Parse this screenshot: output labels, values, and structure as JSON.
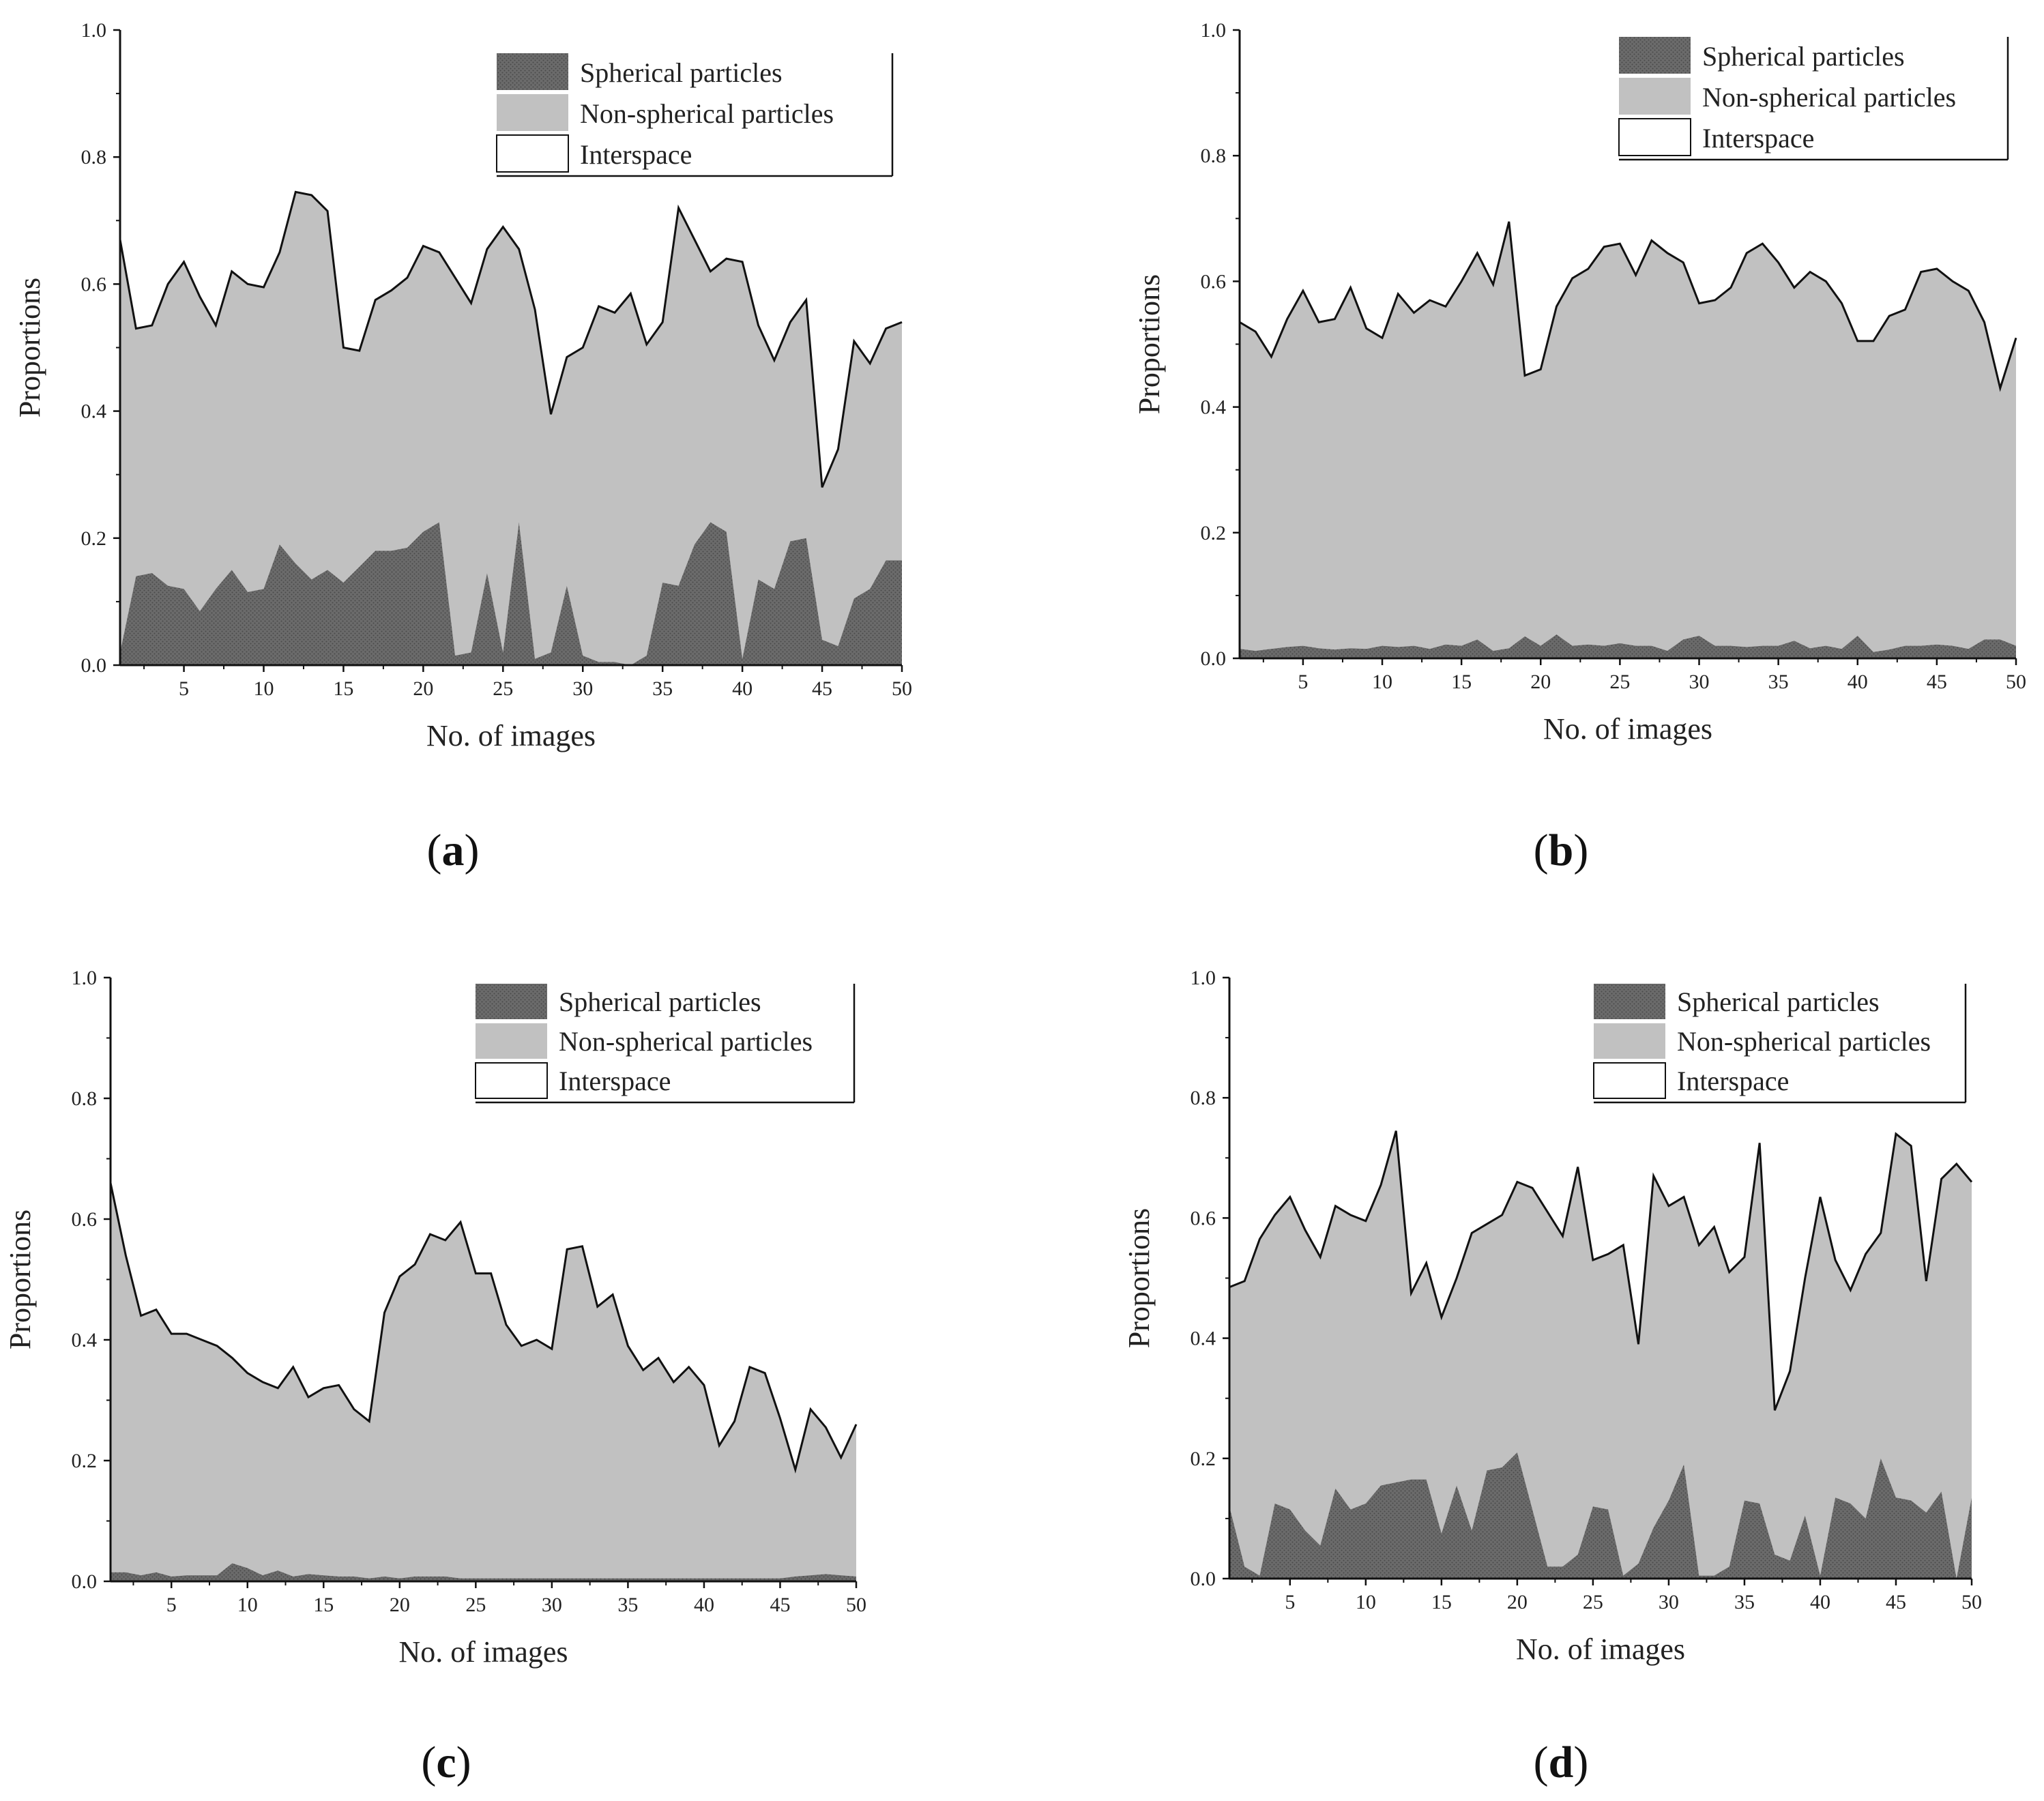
{
  "colors": {
    "spherical": "#6b6b6b",
    "non_spherical": "#c1c1c1",
    "interspace": "#ffffff",
    "axis": "#111111",
    "dot_pattern": "#4a4a4a"
  },
  "chart_data": [
    {
      "panel": "a",
      "type": "area",
      "stacked": true,
      "xlabel": "No. of images",
      "ylabel": "Proportions",
      "xlim": [
        1,
        50
      ],
      "ylim": [
        0,
        1
      ],
      "xticks": [
        5,
        10,
        15,
        20,
        25,
        30,
        35,
        40,
        45,
        50
      ],
      "yticks": [
        "0.0",
        "0.2",
        "0.4",
        "0.6",
        "0.8",
        "1.0"
      ],
      "legend_position": "top-right",
      "legend": [
        "Spherical particles",
        "Non-spherical particles",
        "Interspace"
      ],
      "x": [
        1,
        2,
        3,
        4,
        5,
        6,
        7,
        8,
        9,
        10,
        11,
        12,
        13,
        14,
        15,
        16,
        17,
        18,
        19,
        20,
        21,
        22,
        23,
        24,
        25,
        26,
        27,
        28,
        29,
        30,
        31,
        32,
        33,
        34,
        35,
        36,
        37,
        38,
        39,
        40,
        41,
        42,
        43,
        44,
        45,
        46,
        47,
        48,
        49,
        50
      ],
      "series": [
        {
          "name": "Spherical particles",
          "values": [
            0.02,
            0.14,
            0.145,
            0.125,
            0.12,
            0.085,
            0.12,
            0.15,
            0.115,
            0.12,
            0.19,
            0.16,
            0.135,
            0.15,
            0.13,
            0.155,
            0.18,
            0.18,
            0.185,
            0.21,
            0.225,
            0.015,
            0.02,
            0.145,
            0.02,
            0.225,
            0.01,
            0.02,
            0.125,
            0.015,
            0.005,
            0.005,
            0.0,
            0.015,
            0.13,
            0.125,
            0.19,
            0.225,
            0.21,
            0.01,
            0.135,
            0.12,
            0.195,
            0.2,
            0.04,
            0.03,
            0.105,
            0.12,
            0.165,
            0.165
          ]
        },
        {
          "name": "Non-spherical particles",
          "boundary": [
            0.67,
            0.53,
            0.535,
            0.6,
            0.635,
            0.58,
            0.535,
            0.62,
            0.6,
            0.595,
            0.65,
            0.745,
            0.74,
            0.715,
            0.5,
            0.495,
            0.575,
            0.59,
            0.61,
            0.66,
            0.65,
            0.61,
            0.57,
            0.655,
            0.69,
            0.655,
            0.56,
            0.395,
            0.485,
            0.5,
            0.565,
            0.555,
            0.585,
            0.505,
            0.54,
            0.72,
            0.67,
            0.62,
            0.64,
            0.635,
            0.535,
            0.48,
            0.54,
            0.575,
            0.28,
            0.34,
            0.51,
            0.475,
            0.53,
            0.54
          ]
        }
      ]
    },
    {
      "panel": "b",
      "type": "area",
      "stacked": true,
      "xlabel": "No. of images",
      "ylabel": "Proportions",
      "xlim": [
        1,
        50
      ],
      "ylim": [
        0,
        1
      ],
      "xticks": [
        5,
        10,
        15,
        20,
        25,
        30,
        35,
        40,
        45,
        50
      ],
      "yticks": [
        "0.0",
        "0.2",
        "0.4",
        "0.6",
        "0.8",
        "1.0"
      ],
      "legend_position": "top-right",
      "legend": [
        "Spherical particles",
        "Non-spherical particles",
        "Interspace"
      ],
      "x": [
        1,
        2,
        3,
        4,
        5,
        6,
        7,
        8,
        9,
        10,
        11,
        12,
        13,
        14,
        15,
        16,
        17,
        18,
        19,
        20,
        21,
        22,
        23,
        24,
        25,
        26,
        27,
        28,
        29,
        30,
        31,
        32,
        33,
        34,
        35,
        36,
        37,
        38,
        39,
        40,
        41,
        42,
        43,
        44,
        45,
        46,
        47,
        48,
        49,
        50
      ],
      "series": [
        {
          "name": "Spherical particles",
          "values": [
            0.015,
            0.012,
            0.015,
            0.018,
            0.02,
            0.016,
            0.014,
            0.016,
            0.015,
            0.02,
            0.018,
            0.02,
            0.015,
            0.022,
            0.02,
            0.03,
            0.012,
            0.016,
            0.035,
            0.02,
            0.038,
            0.02,
            0.022,
            0.02,
            0.024,
            0.02,
            0.02,
            0.012,
            0.03,
            0.036,
            0.02,
            0.02,
            0.018,
            0.02,
            0.02,
            0.028,
            0.016,
            0.02,
            0.015,
            0.036,
            0.01,
            0.014,
            0.02,
            0.02,
            0.022,
            0.02,
            0.015,
            0.03,
            0.03,
            0.02
          ]
        },
        {
          "name": "Non-spherical particles",
          "boundary": [
            0.535,
            0.52,
            0.48,
            0.54,
            0.585,
            0.535,
            0.54,
            0.59,
            0.525,
            0.51,
            0.58,
            0.55,
            0.57,
            0.56,
            0.6,
            0.645,
            0.595,
            0.695,
            0.45,
            0.46,
            0.56,
            0.605,
            0.62,
            0.655,
            0.66,
            0.61,
            0.665,
            0.645,
            0.63,
            0.565,
            0.57,
            0.59,
            0.645,
            0.66,
            0.63,
            0.59,
            0.615,
            0.6,
            0.565,
            0.505,
            0.505,
            0.545,
            0.555,
            0.615,
            0.62,
            0.6,
            0.585,
            0.535,
            0.43,
            0.51
          ]
        }
      ]
    },
    {
      "panel": "c",
      "type": "area",
      "stacked": true,
      "xlabel": "No. of images",
      "ylabel": "Proportions",
      "xlim": [
        1,
        50
      ],
      "ylim": [
        0,
        1
      ],
      "xticks": [
        5,
        10,
        15,
        20,
        25,
        30,
        35,
        40,
        45,
        50
      ],
      "yticks": [
        "0.0",
        "0.2",
        "0.4",
        "0.6",
        "0.8",
        "1.0"
      ],
      "legend_position": "top-right",
      "legend": [
        "Spherical particles",
        "Non-spherical particles",
        "Interspace"
      ],
      "x": [
        1,
        2,
        3,
        4,
        5,
        6,
        7,
        8,
        9,
        10,
        11,
        12,
        13,
        14,
        15,
        16,
        17,
        18,
        19,
        20,
        21,
        22,
        23,
        24,
        25,
        26,
        27,
        28,
        29,
        30,
        31,
        32,
        33,
        34,
        35,
        36,
        37,
        38,
        39,
        40,
        41,
        42,
        43,
        44,
        45,
        46,
        47,
        48,
        49,
        50
      ],
      "series": [
        {
          "name": "Spherical particles",
          "values": [
            0.015,
            0.015,
            0.01,
            0.015,
            0.008,
            0.01,
            0.01,
            0.01,
            0.03,
            0.022,
            0.01,
            0.018,
            0.008,
            0.012,
            0.01,
            0.008,
            0.008,
            0.005,
            0.008,
            0.005,
            0.008,
            0.008,
            0.008,
            0.005,
            0.005,
            0.005,
            0.005,
            0.005,
            0.005,
            0.005,
            0.005,
            0.005,
            0.005,
            0.005,
            0.005,
            0.005,
            0.005,
            0.005,
            0.005,
            0.005,
            0.005,
            0.005,
            0.005,
            0.005,
            0.005,
            0.008,
            0.01,
            0.012,
            0.01,
            0.008
          ]
        },
        {
          "name": "Non-spherical particles",
          "boundary": [
            0.66,
            0.54,
            0.44,
            0.45,
            0.41,
            0.41,
            0.4,
            0.39,
            0.37,
            0.345,
            0.33,
            0.32,
            0.355,
            0.305,
            0.32,
            0.325,
            0.285,
            0.265,
            0.445,
            0.505,
            0.525,
            0.575,
            0.565,
            0.595,
            0.51,
            0.51,
            0.425,
            0.39,
            0.4,
            0.385,
            0.55,
            0.555,
            0.455,
            0.475,
            0.39,
            0.35,
            0.37,
            0.33,
            0.355,
            0.325,
            0.225,
            0.265,
            0.355,
            0.345,
            0.27,
            0.185,
            0.285,
            0.255,
            0.205,
            0.26
          ]
        }
      ]
    },
    {
      "panel": "d",
      "type": "area",
      "stacked": true,
      "xlabel": "No. of images",
      "ylabel": "Proportions",
      "xlim": [
        1,
        50
      ],
      "ylim": [
        0,
        1
      ],
      "xticks": [
        5,
        10,
        15,
        20,
        25,
        30,
        35,
        40,
        45,
        50
      ],
      "yticks": [
        "0.0",
        "0.2",
        "0.4",
        "0.6",
        "0.8",
        "1.0"
      ],
      "legend_position": "top-right",
      "legend": [
        "Spherical particles",
        "Non-spherical particles",
        "Interspace"
      ],
      "x": [
        1,
        2,
        3,
        4,
        5,
        6,
        7,
        8,
        9,
        10,
        11,
        12,
        13,
        14,
        15,
        16,
        17,
        18,
        19,
        20,
        21,
        22,
        23,
        24,
        25,
        26,
        27,
        28,
        29,
        30,
        31,
        32,
        33,
        34,
        35,
        36,
        37,
        38,
        39,
        40,
        41,
        42,
        43,
        44,
        45,
        46,
        47,
        48,
        49,
        50
      ],
      "series": [
        {
          "name": "Spherical particles",
          "values": [
            0.12,
            0.02,
            0.005,
            0.125,
            0.115,
            0.08,
            0.055,
            0.15,
            0.115,
            0.125,
            0.155,
            0.16,
            0.165,
            0.165,
            0.075,
            0.155,
            0.08,
            0.18,
            0.185,
            0.21,
            0.115,
            0.02,
            0.02,
            0.04,
            0.12,
            0.115,
            0.005,
            0.025,
            0.085,
            0.13,
            0.19,
            0.005,
            0.005,
            0.02,
            0.13,
            0.125,
            0.04,
            0.03,
            0.105,
            0.005,
            0.135,
            0.125,
            0.1,
            0.2,
            0.135,
            0.13,
            0.11,
            0.145,
            0.0,
            0.135
          ]
        },
        {
          "name": "Non-spherical particles",
          "boundary": [
            0.485,
            0.495,
            0.565,
            0.605,
            0.635,
            0.58,
            0.535,
            0.62,
            0.605,
            0.595,
            0.655,
            0.745,
            0.475,
            0.525,
            0.435,
            0.5,
            0.575,
            0.59,
            0.605,
            0.66,
            0.65,
            0.61,
            0.57,
            0.685,
            0.53,
            0.54,
            0.555,
            0.39,
            0.67,
            0.62,
            0.635,
            0.555,
            0.585,
            0.51,
            0.535,
            0.725,
            0.28,
            0.345,
            0.5,
            0.635,
            0.53,
            0.48,
            0.54,
            0.575,
            0.74,
            0.72,
            0.495,
            0.665,
            0.69,
            0.66
          ]
        }
      ]
    }
  ],
  "panel_labels": [
    "a",
    "b",
    "c",
    "d"
  ]
}
